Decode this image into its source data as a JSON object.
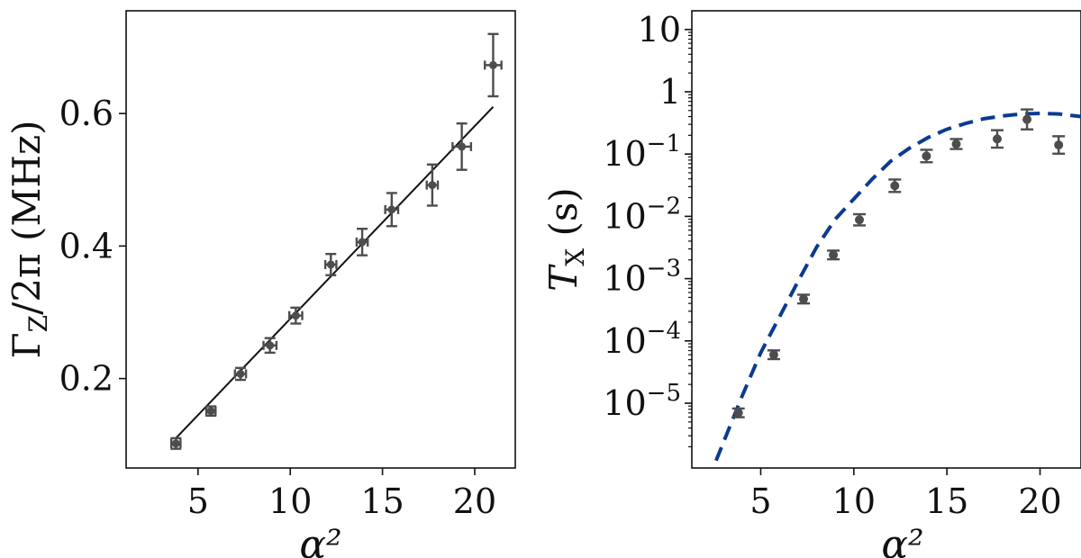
{
  "chart_data": [
    {
      "type": "scatter",
      "xlabel": "α²",
      "ylabel": "Γ_Z/2π (MHz)",
      "ylabel_parts": {
        "symbol": "Γ",
        "sub": "Z",
        "rest": "/2π (MHz)"
      },
      "xlim": [
        1.1,
        22.2
      ],
      "ylim": [
        0.065,
        0.755
      ],
      "x_ticks": [
        5,
        10,
        15,
        20
      ],
      "x_tick_labels": [
        "5",
        "10",
        "15",
        "20"
      ],
      "y_ticks": [
        0.2,
        0.4,
        0.6
      ],
      "y_tick_labels": [
        "0.2",
        "0.4",
        "0.6"
      ],
      "grid": false,
      "colors": {
        "points": "#4d4d4d",
        "fit": "#111111"
      },
      "series": [
        {
          "kind": "points",
          "x": [
            3.8,
            5.7,
            7.3,
            8.9,
            10.3,
            12.2,
            13.9,
            15.5,
            17.7,
            19.3,
            21.0
          ],
          "y": [
            0.102,
            0.151,
            0.207,
            0.25,
            0.295,
            0.372,
            0.406,
            0.455,
            0.492,
            0.55,
            0.673
          ],
          "y_err": [
            0.008,
            0.007,
            0.009,
            0.011,
            0.012,
            0.016,
            0.02,
            0.025,
            0.031,
            0.035,
            0.047
          ],
          "x_err": [
            0.25,
            0.25,
            0.3,
            0.35,
            0.35,
            0.3,
            0.3,
            0.35,
            0.3,
            0.5,
            0.45
          ]
        },
        {
          "kind": "fit",
          "x": [
            3.8,
            21.0
          ],
          "y": [
            0.11,
            0.61
          ]
        }
      ]
    },
    {
      "type": "scatter",
      "xlabel": "α²",
      "ylabel": "T_X (s)",
      "ylabel_parts": {
        "symbol": "T",
        "sub": "X",
        "rest": " (s)"
      },
      "scale_y": "log",
      "xlim": [
        1.3,
        22.2
      ],
      "ylim_exp": [
        -6.04,
        1.3
      ],
      "x_ticks": [
        5,
        10,
        15,
        20
      ],
      "x_tick_labels": [
        "5",
        "10",
        "15",
        "20"
      ],
      "y_ticks": [
        {
          "exp": 1,
          "label": "10"
        },
        {
          "exp": 0,
          "label": "1"
        },
        {
          "exp": -1,
          "base": "10",
          "sup": "−1"
        },
        {
          "exp": -2,
          "base": "10",
          "sup": "−2"
        },
        {
          "exp": -3,
          "base": "10",
          "sup": "−3"
        },
        {
          "exp": -4,
          "base": "10",
          "sup": "−4"
        },
        {
          "exp": -5,
          "base": "10",
          "sup": "−5"
        }
      ],
      "grid": false,
      "colors": {
        "points": "#4d4d4d",
        "theory": "#0b3a91"
      },
      "series": [
        {
          "kind": "points",
          "x": [
            3.8,
            5.7,
            7.3,
            8.9,
            10.3,
            12.2,
            13.9,
            15.5,
            17.7,
            19.3,
            21.0
          ],
          "y": [
            7e-06,
            6e-05,
            0.00047,
            0.0024,
            0.0088,
            0.031,
            0.093,
            0.145,
            0.175,
            0.36,
            0.14
          ],
          "y_err_log": [
            0.07,
            0.07,
            0.07,
            0.07,
            0.09,
            0.1,
            0.1,
            0.08,
            0.14,
            0.16,
            0.14
          ]
        },
        {
          "kind": "theory",
          "style": "dashed",
          "x": [
            2.6,
            4.0,
            5.0,
            6.0,
            7.0,
            8.0,
            9.0,
            10.0,
            11.0,
            12.0,
            13.0,
            14.0,
            15.0,
            16.0,
            17.0,
            18.0,
            19.0,
            20.0,
            21.0,
            22.2
          ],
          "y": [
            1.2e-06,
            1.3e-05,
            6.5e-05,
            0.00024,
            0.0009,
            0.0032,
            0.009,
            0.019,
            0.04,
            0.078,
            0.125,
            0.185,
            0.25,
            0.31,
            0.37,
            0.41,
            0.44,
            0.45,
            0.44,
            0.4
          ]
        }
      ]
    }
  ]
}
